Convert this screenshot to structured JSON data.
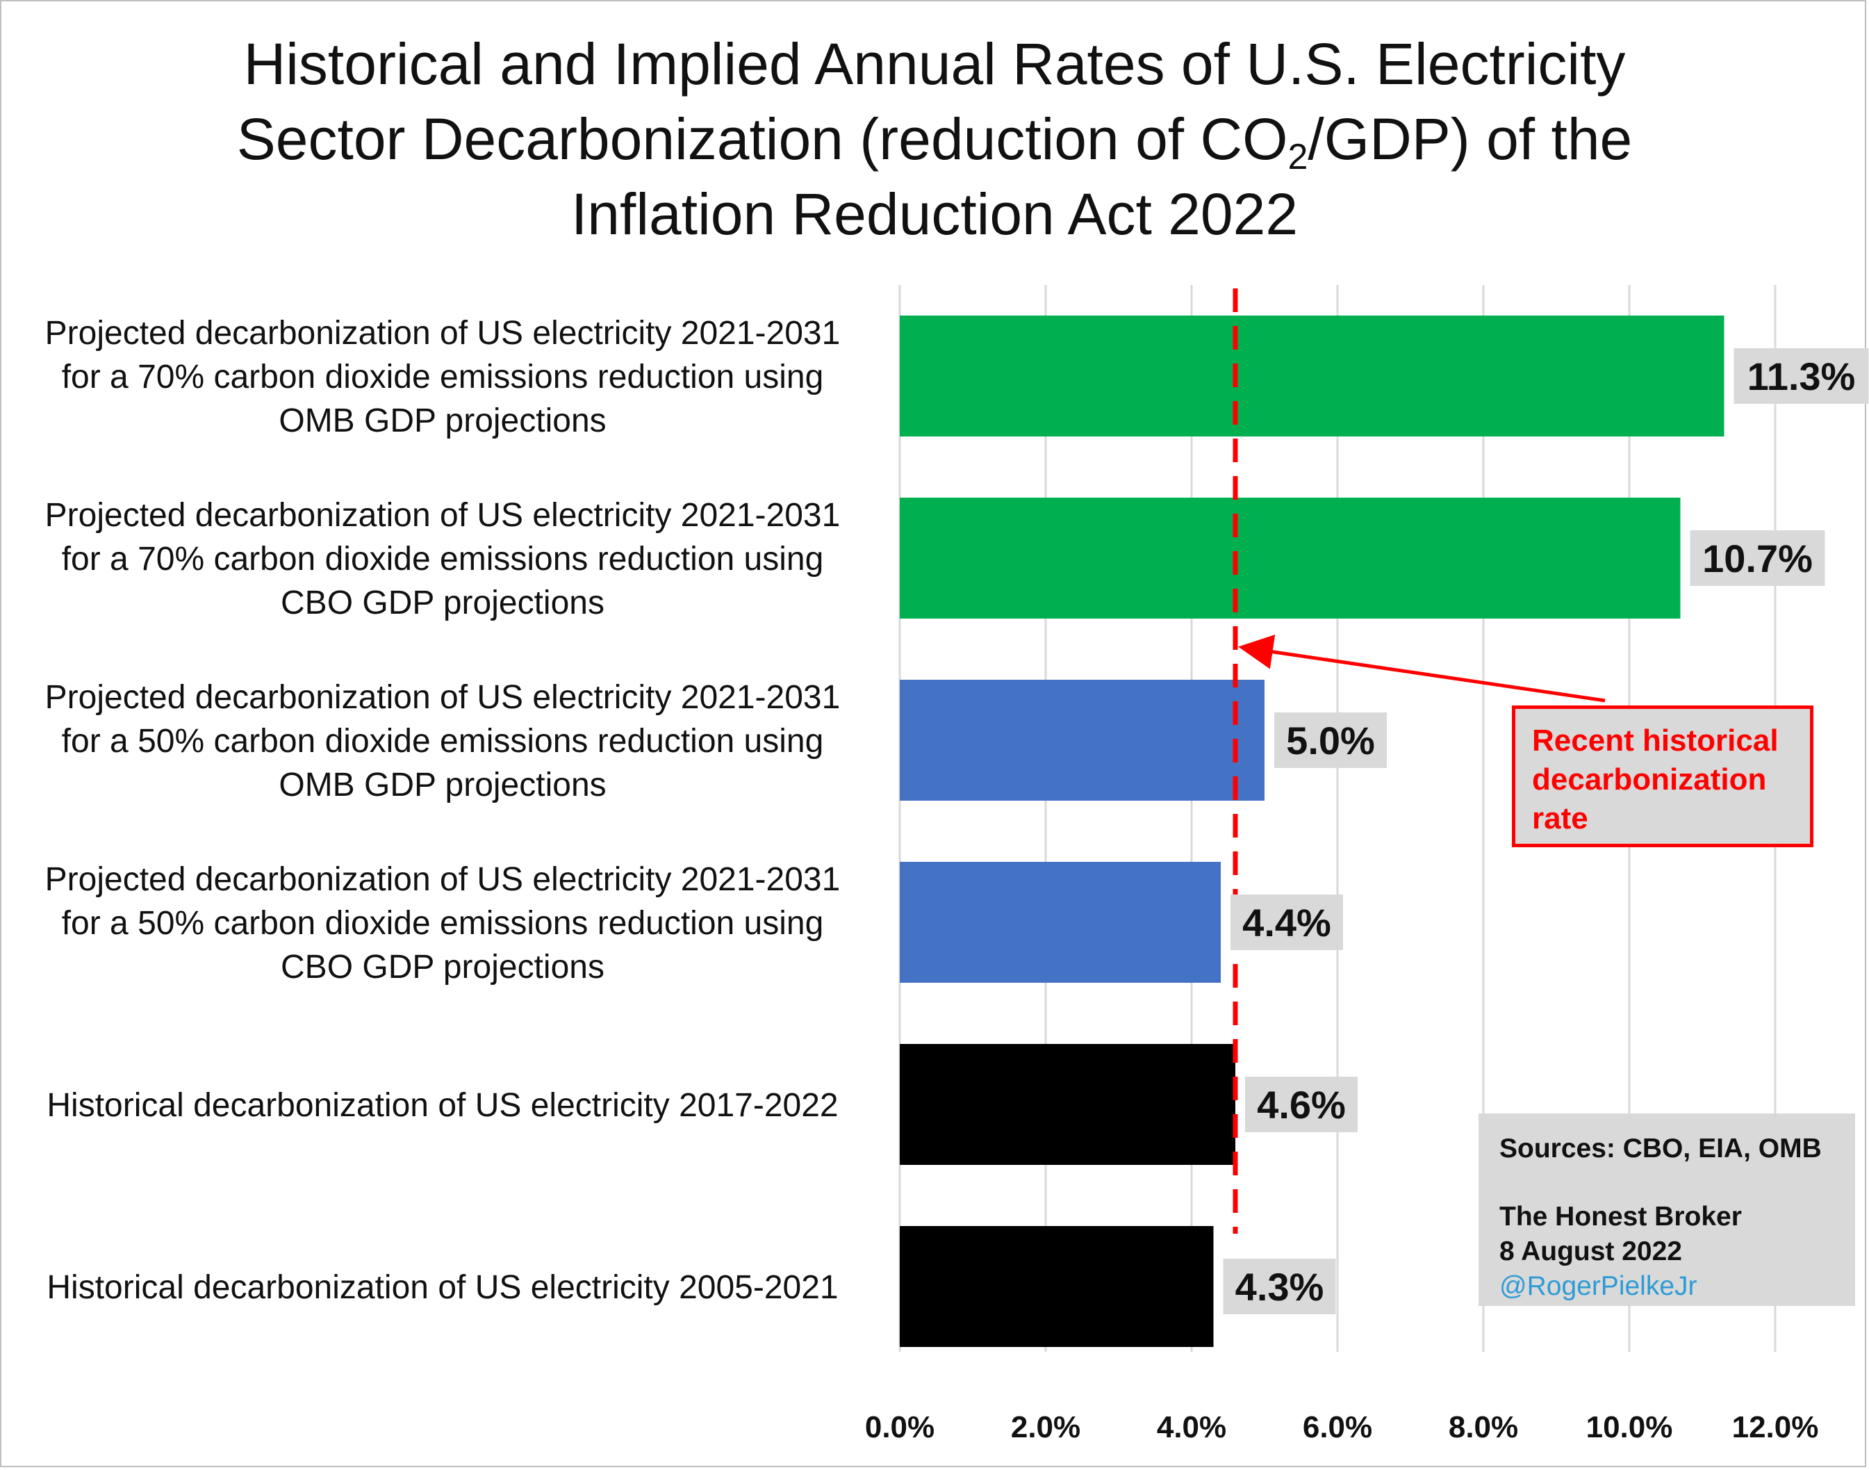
{
  "chart_data": {
    "type": "bar",
    "orientation": "horizontal",
    "title": "Historical and Implied Annual Rates of U.S. Electricity Sector Decarbonization (reduction of CO2/GDP) of the Inflation Reduction Act 2022",
    "title_parts": {
      "line1": "Historical and Implied Annual Rates of U.S. Electricity",
      "line2_pre": "Sector Decarbonization (reduction of CO",
      "line2_sub": "2",
      "line2_post": "/GDP) of the",
      "line3": "Inflation Reduction Act 2022"
    },
    "categories": [
      [
        "Projected decarbonization of US electricity 2021-2031",
        "for a 70% carbon dioxide emissions reduction using",
        "OMB GDP projections"
      ],
      [
        "Projected decarbonization of US electricity 2021-2031",
        "for a 70% carbon dioxide emissions reduction using",
        "CBO GDP projections"
      ],
      [
        "Projected decarbonization of US electricity 2021-2031",
        "for a 50% carbon dioxide emissions reduction using",
        "OMB GDP projections"
      ],
      [
        "Projected decarbonization of US electricity 2021-2031",
        "for a 50% carbon dioxide emissions reduction using",
        "CBO GDP projections"
      ],
      [
        "Historical decarbonization of US electricity 2017-2022"
      ],
      [
        "Historical decarbonization of US electricity 2005-2021"
      ]
    ],
    "values": [
      11.3,
      10.7,
      5.0,
      4.4,
      4.6,
      4.3
    ],
    "value_labels": [
      "11.3%",
      "10.7%",
      "5.0%",
      "4.4%",
      "4.6%",
      "4.3%"
    ],
    "bar_colors": [
      "#00b050",
      "#00b050",
      "#4472c4",
      "#4472c4",
      "#000000",
      "#000000"
    ],
    "xlim": [
      0,
      12
    ],
    "x_ticks": [
      0,
      2,
      4,
      6,
      8,
      10,
      12
    ],
    "x_tick_labels": [
      "0.0%",
      "2.0%",
      "4.0%",
      "6.0%",
      "8.0%",
      "10.0%",
      "12.0%"
    ],
    "grid": true,
    "reference_line": {
      "value": 4.6,
      "color": "#ff0000",
      "style": "dashed"
    },
    "annotation": {
      "text_lines": [
        "Recent historical",
        "decarbonization",
        "rate"
      ],
      "color": "#ff0000"
    }
  },
  "sources_box": {
    "sources": "Sources: CBO, EIA, OMB",
    "publisher": "The Honest Broker",
    "date": "8 August 2022",
    "handle": "@RogerPielkeJr"
  },
  "colors": {
    "grid": "#d9d9d9",
    "label_bg": "#d9d9d9"
  }
}
